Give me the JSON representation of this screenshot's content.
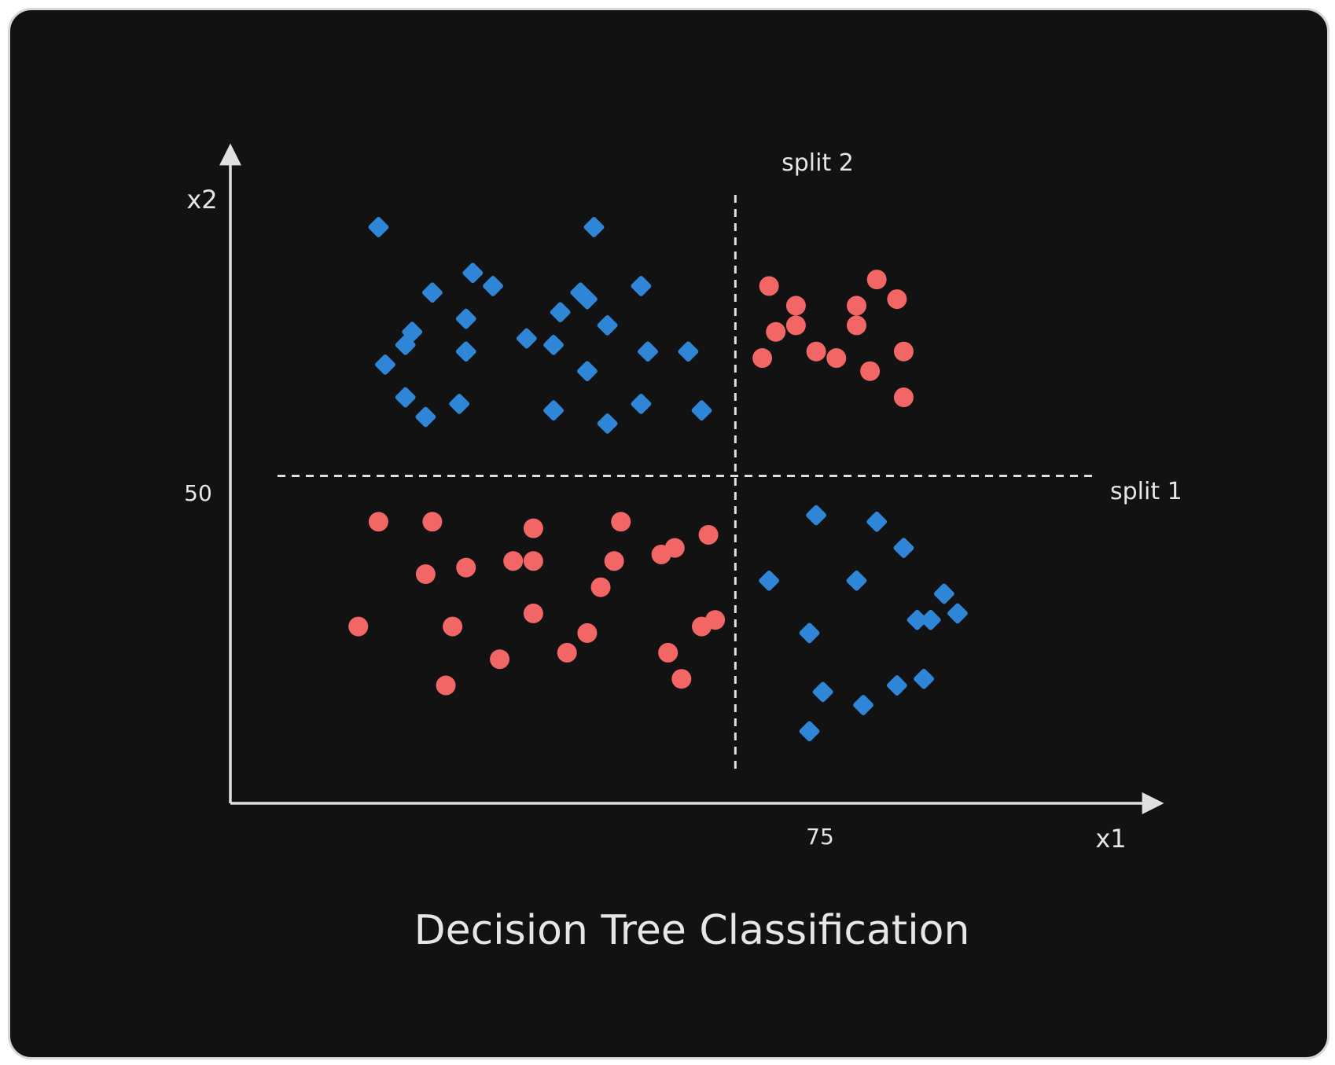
{
  "chart_data": {
    "type": "scatter",
    "title": "Decision Tree Classification",
    "xlabel": "x1",
    "ylabel": "x2",
    "xlim": [
      0,
      140
    ],
    "ylim": [
      0,
      100
    ],
    "x_ticks": [
      {
        "value": 75,
        "label": "75"
      }
    ],
    "y_ticks": [
      {
        "value": 50,
        "label": "50"
      }
    ],
    "splits": [
      {
        "axis": "x2",
        "value": 50,
        "label": "split 1"
      },
      {
        "axis": "x1",
        "value": 75,
        "label": "split 2"
      }
    ],
    "grid": false,
    "legend": "none",
    "colors": {
      "diamond": "#2f86d6",
      "circle": "#f26666",
      "axis": "#e0e0e0",
      "background": "#121212"
    },
    "series": [
      {
        "marker": "diamond",
        "points": [
          [
            22,
            88
          ],
          [
            30,
            78
          ],
          [
            27,
            72
          ],
          [
            26,
            70
          ],
          [
            23,
            67
          ],
          [
            26,
            62
          ],
          [
            29,
            59
          ],
          [
            36,
            81
          ],
          [
            35,
            74
          ],
          [
            35,
            69
          ],
          [
            39,
            79
          ],
          [
            34,
            61
          ],
          [
            44,
            71
          ],
          [
            49,
            75
          ],
          [
            52,
            78
          ],
          [
            48,
            70
          ],
          [
            48,
            60
          ],
          [
            53,
            77
          ],
          [
            54,
            88
          ],
          [
            56,
            73
          ],
          [
            53,
            66
          ],
          [
            62,
            69
          ],
          [
            61,
            79
          ],
          [
            56,
            58
          ],
          [
            61,
            61
          ],
          [
            68,
            69
          ],
          [
            70,
            60
          ],
          [
            86,
            26
          ],
          [
            80,
            34
          ],
          [
            86,
            11
          ],
          [
            87,
            44
          ],
          [
            88,
            17
          ],
          [
            93,
            34
          ],
          [
            94,
            15
          ],
          [
            96,
            43
          ],
          [
            99,
            18
          ],
          [
            100,
            39
          ],
          [
            103,
            19
          ],
          [
            102,
            28
          ],
          [
            106,
            32
          ],
          [
            108,
            29
          ],
          [
            104,
            28
          ]
        ]
      },
      {
        "marker": "circle",
        "points": [
          [
            80,
            79
          ],
          [
            84,
            76
          ],
          [
            81,
            72
          ],
          [
            79,
            68
          ],
          [
            84,
            73
          ],
          [
            93,
            73
          ],
          [
            93,
            76
          ],
          [
            90,
            68
          ],
          [
            96,
            80
          ],
          [
            99,
            77
          ],
          [
            87,
            69
          ],
          [
            100,
            69
          ],
          [
            95,
            66
          ],
          [
            100,
            62
          ],
          [
            22,
            43
          ],
          [
            30,
            43
          ],
          [
            29,
            35
          ],
          [
            19,
            27
          ],
          [
            33,
            27
          ],
          [
            32,
            18
          ],
          [
            40,
            22
          ],
          [
            45,
            42
          ],
          [
            42,
            37
          ],
          [
            45,
            29
          ],
          [
            35,
            36
          ],
          [
            45,
            37
          ],
          [
            55,
            33
          ],
          [
            58,
            43
          ],
          [
            53,
            26
          ],
          [
            50,
            23
          ],
          [
            66,
            39
          ],
          [
            57,
            37
          ],
          [
            70,
            27
          ],
          [
            65,
            23
          ],
          [
            72,
            28
          ],
          [
            71,
            41
          ],
          [
            64,
            38
          ],
          [
            67,
            19
          ]
        ]
      }
    ]
  }
}
